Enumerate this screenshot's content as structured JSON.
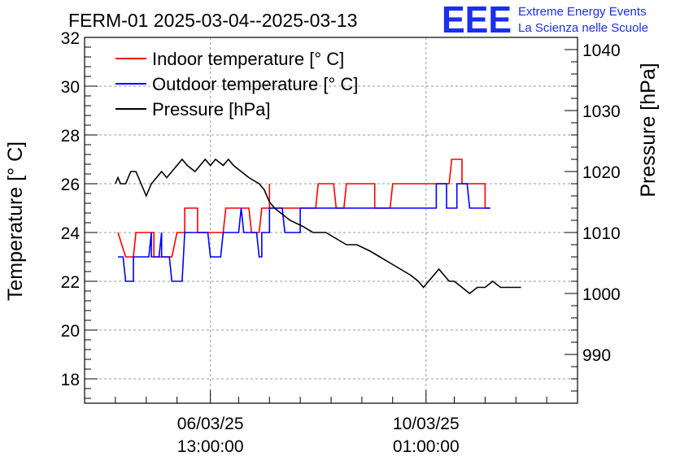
{
  "chart_data": {
    "type": "line",
    "title": "FERM-01 2025-03-04--2025-03-13",
    "ylabel_left": "Temperature [° C]",
    "ylabel_right": "Pressure [hPa]",
    "xlim": [
      "2025-03-04 12:00",
      "2025-03-12 12:00"
    ],
    "ylim_left": [
      17,
      32
    ],
    "ylim_right": [
      982,
      1042
    ],
    "grid": true,
    "legend_position": "top-left",
    "x_ticks": [
      {
        "at": "2025-03-06 13:00",
        "date": "06/03/25",
        "time": "13:00:00"
      },
      {
        "at": "2025-03-10 01:00",
        "date": "10/03/25",
        "time": "01:00:00"
      }
    ],
    "y_ticks_left": [
      18,
      20,
      22,
      24,
      26,
      28,
      30,
      32
    ],
    "y_ticks_right": [
      990,
      1000,
      1010,
      1020,
      1030,
      1040
    ],
    "series": [
      {
        "name": "Indoor temperature [° C]",
        "color": "#ff0000",
        "axis": "left",
        "points": [
          [
            "2025-03-05 01:00",
            24
          ],
          [
            "2025-03-05 04:00",
            23
          ],
          [
            "2025-03-05 07:00",
            23
          ],
          [
            "2025-03-05 08:00",
            24
          ],
          [
            "2025-03-05 15:00",
            24
          ],
          [
            "2025-03-05 15:00",
            23
          ],
          [
            "2025-03-05 22:00",
            23
          ],
          [
            "2025-03-06 00:00",
            24
          ],
          [
            "2025-03-06 03:00",
            24
          ],
          [
            "2025-03-06 03:00",
            25
          ],
          [
            "2025-03-06 08:00",
            25
          ],
          [
            "2025-03-06 08:00",
            24
          ],
          [
            "2025-03-06 18:00",
            24
          ],
          [
            "2025-03-06 19:00",
            25
          ],
          [
            "2025-03-07 04:00",
            25
          ],
          [
            "2025-03-07 05:00",
            24
          ],
          [
            "2025-03-07 08:00",
            24
          ],
          [
            "2025-03-07 09:00",
            25
          ],
          [
            "2025-03-07 12:00",
            25
          ],
          [
            "2025-03-07 12:00",
            26
          ],
          [
            "2025-03-07 12:00",
            25
          ],
          [
            "2025-03-08 06:00",
            25
          ],
          [
            "2025-03-08 07:00",
            26
          ],
          [
            "2025-03-08 13:00",
            26
          ],
          [
            "2025-03-08 14:00",
            25
          ],
          [
            "2025-03-08 17:00",
            25
          ],
          [
            "2025-03-08 18:00",
            26
          ],
          [
            "2025-03-09 05:00",
            26
          ],
          [
            "2025-03-09 05:00",
            25
          ],
          [
            "2025-03-09 11:00",
            25
          ],
          [
            "2025-03-09 12:00",
            26
          ],
          [
            "2025-03-10 10:00",
            26
          ],
          [
            "2025-03-10 11:00",
            27
          ],
          [
            "2025-03-10 15:00",
            27
          ],
          [
            "2025-03-10 15:00",
            26
          ],
          [
            "2025-03-11 00:00",
            26
          ],
          [
            "2025-03-11 00:00",
            25
          ],
          [
            "2025-03-11 02:00",
            25
          ]
        ]
      },
      {
        "name": "Outdoor temperature [° C]",
        "color": "#0000ff",
        "axis": "left",
        "points": [
          [
            "2025-03-05 01:00",
            23
          ],
          [
            "2025-03-05 03:00",
            23
          ],
          [
            "2025-03-05 04:00",
            22
          ],
          [
            "2025-03-05 07:00",
            22
          ],
          [
            "2025-03-05 07:00",
            23
          ],
          [
            "2025-03-05 13:00",
            23
          ],
          [
            "2025-03-05 14:00",
            24
          ],
          [
            "2025-03-05 14:00",
            23
          ],
          [
            "2025-03-05 17:00",
            23
          ],
          [
            "2025-03-05 18:00",
            24
          ],
          [
            "2025-03-05 18:00",
            23
          ],
          [
            "2025-03-05 21:00",
            23
          ],
          [
            "2025-03-05 22:00",
            22
          ],
          [
            "2025-03-06 02:00",
            22
          ],
          [
            "2025-03-06 03:00",
            24
          ],
          [
            "2025-03-06 12:00",
            24
          ],
          [
            "2025-03-06 13:00",
            23
          ],
          [
            "2025-03-06 17:00",
            23
          ],
          [
            "2025-03-06 18:00",
            24
          ],
          [
            "2025-03-07 00:00",
            24
          ],
          [
            "2025-03-07 01:00",
            25
          ],
          [
            "2025-03-07 02:00",
            24
          ],
          [
            "2025-03-07 07:00",
            24
          ],
          [
            "2025-03-07 08:00",
            23
          ],
          [
            "2025-03-07 09:00",
            23
          ],
          [
            "2025-03-07 09:00",
            24
          ],
          [
            "2025-03-07 12:00",
            24
          ],
          [
            "2025-03-07 12:00",
            25
          ],
          [
            "2025-03-07 17:00",
            25
          ],
          [
            "2025-03-07 18:00",
            24
          ],
          [
            "2025-03-08 00:00",
            24
          ],
          [
            "2025-03-08 00:00",
            25
          ],
          [
            "2025-03-10 05:00",
            25
          ],
          [
            "2025-03-10 05:00",
            26
          ],
          [
            "2025-03-10 09:00",
            26
          ],
          [
            "2025-03-10 09:00",
            25
          ],
          [
            "2025-03-10 13:00",
            25
          ],
          [
            "2025-03-10 13:00",
            26
          ],
          [
            "2025-03-10 17:00",
            26
          ],
          [
            "2025-03-10 18:00",
            25
          ],
          [
            "2025-03-11 02:00",
            25
          ]
        ]
      },
      {
        "name": "Pressure [hPa]",
        "color": "#000000",
        "axis": "right",
        "points": [
          [
            "2025-03-05 00:00",
            1018
          ],
          [
            "2025-03-05 01:00",
            1019
          ],
          [
            "2025-03-05 02:00",
            1018
          ],
          [
            "2025-03-05 04:00",
            1018
          ],
          [
            "2025-03-05 06:00",
            1020
          ],
          [
            "2025-03-05 08:00",
            1020
          ],
          [
            "2025-03-05 11:00",
            1017
          ],
          [
            "2025-03-05 12:00",
            1016
          ],
          [
            "2025-03-05 14:00",
            1018
          ],
          [
            "2025-03-05 16:00",
            1019
          ],
          [
            "2025-03-05 18:00",
            1020
          ],
          [
            "2025-03-05 20:00",
            1019
          ],
          [
            "2025-03-05 22:00",
            1020
          ],
          [
            "2025-03-06 00:00",
            1021
          ],
          [
            "2025-03-06 02:00",
            1022
          ],
          [
            "2025-03-06 04:00",
            1021
          ],
          [
            "2025-03-06 07:00",
            1020
          ],
          [
            "2025-03-06 09:00",
            1021
          ],
          [
            "2025-03-06 11:00",
            1022
          ],
          [
            "2025-03-06 13:00",
            1021
          ],
          [
            "2025-03-06 15:00",
            1022
          ],
          [
            "2025-03-06 18:00",
            1021
          ],
          [
            "2025-03-06 20:00",
            1022
          ],
          [
            "2025-03-06 22:00",
            1021
          ],
          [
            "2025-03-07 01:00",
            1020
          ],
          [
            "2025-03-07 04:00",
            1019
          ],
          [
            "2025-03-07 08:00",
            1018
          ],
          [
            "2025-03-07 10:00",
            1017
          ],
          [
            "2025-03-07 12:00",
            1015
          ],
          [
            "2025-03-07 14:00",
            1014
          ],
          [
            "2025-03-07 17:00",
            1013
          ],
          [
            "2025-03-07 20:00",
            1012
          ],
          [
            "2025-03-08 01:00",
            1011
          ],
          [
            "2025-03-08 05:00",
            1010
          ],
          [
            "2025-03-08 10:00",
            1010
          ],
          [
            "2025-03-08 14:00",
            1009
          ],
          [
            "2025-03-08 18:00",
            1008
          ],
          [
            "2025-03-08 22:00",
            1008
          ],
          [
            "2025-03-09 03:00",
            1007
          ],
          [
            "2025-03-09 07:00",
            1006
          ],
          [
            "2025-03-09 11:00",
            1005
          ],
          [
            "2025-03-09 15:00",
            1004
          ],
          [
            "2025-03-09 19:00",
            1003
          ],
          [
            "2025-03-09 22:00",
            1002
          ],
          [
            "2025-03-10 00:00",
            1001
          ],
          [
            "2025-03-10 02:00",
            1002
          ],
          [
            "2025-03-10 04:00",
            1003
          ],
          [
            "2025-03-10 06:00",
            1004
          ],
          [
            "2025-03-10 08:00",
            1003
          ],
          [
            "2025-03-10 10:00",
            1002
          ],
          [
            "2025-03-10 12:00",
            1002
          ],
          [
            "2025-03-10 15:00",
            1001
          ],
          [
            "2025-03-10 18:00",
            1000
          ],
          [
            "2025-03-10 21:00",
            1001
          ],
          [
            "2025-03-11 00:00",
            1001
          ],
          [
            "2025-03-11 03:00",
            1002
          ],
          [
            "2025-03-11 06:00",
            1001
          ],
          [
            "2025-03-11 09:00",
            1001
          ],
          [
            "2025-03-11 14:00",
            1001
          ]
        ]
      }
    ]
  },
  "logo": {
    "mark": "EEE",
    "line1": "Extreme Energy Events",
    "line2": "La Scienza nelle Scuole"
  }
}
